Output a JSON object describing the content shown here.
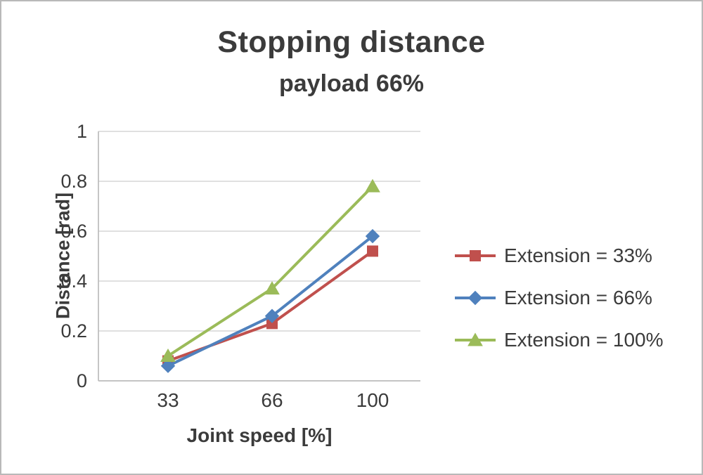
{
  "chart_data": {
    "type": "line",
    "title": "Stopping distance",
    "subtitle": "payload 66%",
    "xlabel": "Joint speed [%]",
    "ylabel": "Distance [rad]",
    "categories": [
      "33",
      "66",
      "100"
    ],
    "ylim": [
      0,
      1
    ],
    "yticks": [
      0,
      0.2,
      0.4,
      0.6,
      0.8,
      1
    ],
    "ytick_labels": [
      "0",
      "0.2",
      "0.4",
      "0.6",
      "0.8",
      "1"
    ],
    "grid": true,
    "legend_position": "right",
    "series": [
      {
        "name": "Extension = 33%",
        "color": "#C0504D",
        "marker": "square",
        "values": [
          0.08,
          0.23,
          0.52
        ]
      },
      {
        "name": "Extension = 66%",
        "color": "#4F81BD",
        "marker": "diamond",
        "values": [
          0.06,
          0.26,
          0.58
        ]
      },
      {
        "name": "Extension = 100%",
        "color": "#9BBB59",
        "marker": "triangle",
        "values": [
          0.1,
          0.37,
          0.78
        ]
      }
    ],
    "colors": {
      "grid": "#d6d6d6",
      "axis": "#bfbfbf",
      "text": "#3b3b3b"
    }
  }
}
